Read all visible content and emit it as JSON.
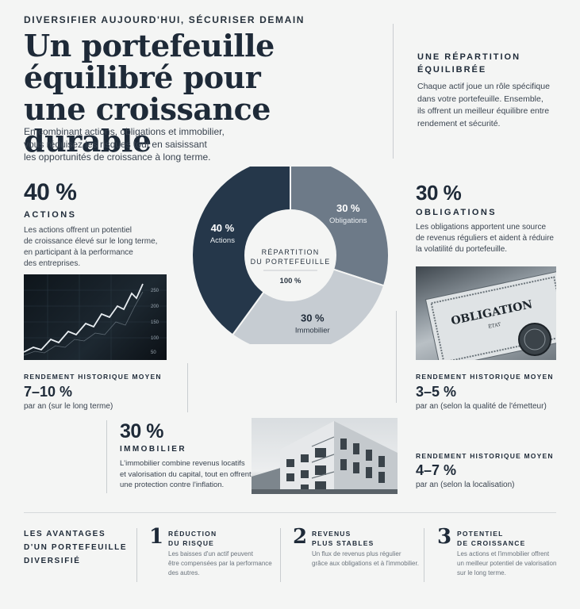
{
  "header": {
    "kicker": "DIVERSIFIER AUJOURD'HUI, SÉCURISER DEMAIN",
    "title_lines": [
      "Un portefeuille",
      "équilibré pour",
      "une croissance durable"
    ],
    "intro_lines": [
      "En combinant actions, obligations et immobilier,",
      "vous réduisez les risques tout en saisissant",
      "les opportunités de croissance à long terme."
    ]
  },
  "aside": {
    "heading_lines": [
      "UNE RÉPARTITION",
      "ÉQUILIBRÉE"
    ],
    "text_lines": [
      "Chaque actif joue un rôle spécifique",
      "dans votre portefeuille. Ensemble,",
      "ils offrent un meilleur équilibre entre",
      "rendement et sécurité."
    ]
  },
  "chart_data": {
    "type": "pie",
    "title": "",
    "center_lines": [
      "RÉPARTITION",
      "DU PORTEFEUILLE"
    ],
    "center_total": "100 %",
    "slices": [
      {
        "label": "Obligations",
        "value": 30,
        "value_label": "30 %",
        "color": "#6d7a88"
      },
      {
        "label": "Immobilier",
        "value": 30,
        "value_label": "30 %",
        "color": "#c6ccd2"
      },
      {
        "label": "Actions",
        "value": 40,
        "value_label": "40 %",
        "color": "#25374a"
      }
    ]
  },
  "actions": {
    "percent": "40 %",
    "label": "ACTIONS",
    "text_lines": [
      "Les actions offrent un potentiel",
      "de croissance élevé sur le long terme,",
      "en participant à la performance",
      "des entreprises."
    ],
    "yield_heading": "RENDEMENT HISTORIQUE MOYEN",
    "yield": "7–10 %",
    "yield_note": "par an (sur le long terme)"
  },
  "obligations": {
    "percent": "30 %",
    "label": "OBLIGATIONS",
    "text_lines": [
      "Les obligations apportent une source",
      "de revenus réguliers et aident à réduire",
      "la volatilité du portefeuille."
    ],
    "photo_text": [
      "OBLIGATION",
      "ÉTAT"
    ],
    "yield_heading": "RENDEMENT HISTORIQUE MOYEN",
    "yield": "3–5 %",
    "yield_note": "par an (selon la qualité de l'émetteur)"
  },
  "immobilier": {
    "percent": "30 %",
    "label": "IMMOBILIER",
    "text_lines": [
      "L'immobilier combine revenus locatifs",
      "et valorisation du capital, tout en offrent",
      "une protection contre l'inflation."
    ],
    "yield_heading": "RENDEMENT HISTORIQUE MOYEN",
    "yield": "4–7 %",
    "yield_note": "par an (selon la localisation)"
  },
  "benefits": {
    "heading_lines": [
      "LES AVANTAGES",
      "D'UN PORTEFEUILLE",
      "DIVERSIFIÉ"
    ],
    "items": [
      {
        "number": "1",
        "title_lines": [
          "RÉDUCTION",
          "DU RISQUE"
        ],
        "text_lines": [
          "Les baisses d'un actif peuvent",
          "être compensées par la performance",
          "des autres."
        ]
      },
      {
        "number": "2",
        "title_lines": [
          "REVENUS",
          "PLUS STABLES"
        ],
        "text_lines": [
          "Un flux de revenus plus régulier",
          "grâce aux obligations et à l'immobilier."
        ]
      },
      {
        "number": "3",
        "title_lines": [
          "POTENTIEL",
          "DE CROISSANCE"
        ],
        "text_lines": [
          "Les actions et l'immobilier offrent",
          "un meilleur potentiel de valorisation",
          "sur le long terme."
        ]
      }
    ]
  },
  "chart_ticks": [
    "250",
    "200",
    "150",
    "100",
    "50"
  ],
  "colors": {
    "ink": "#1e2a38",
    "bg": "#f4f5f4",
    "accent_dark": "#25374a",
    "accent_mid": "#6d7a88",
    "accent_light": "#c6ccd2"
  }
}
